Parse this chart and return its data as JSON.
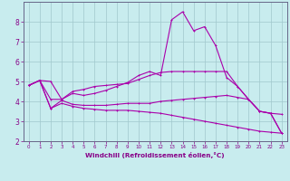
{
  "background_color": "#c8ecee",
  "line_color": "#aa00aa",
  "grid_color": "#a0c8cc",
  "xlabel": "Windchill (Refroidissement éolien,°C)",
  "xlabel_color": "#880088",
  "tick_color": "#880088",
  "spine_color": "#666688",
  "xlim": [
    -0.5,
    23.5
  ],
  "ylim": [
    2,
    9
  ],
  "yticks": [
    2,
    3,
    4,
    5,
    6,
    7,
    8
  ],
  "xticks": [
    0,
    1,
    2,
    3,
    4,
    5,
    6,
    7,
    8,
    9,
    10,
    11,
    12,
    13,
    14,
    15,
    16,
    17,
    18,
    19,
    20,
    21,
    22,
    23
  ],
  "line1_x": [
    0,
    1,
    2,
    3,
    4,
    5,
    6,
    7,
    8,
    9,
    10,
    11,
    12,
    13,
    14,
    15,
    16,
    17,
    18,
    19,
    20,
    21,
    22,
    23
  ],
  "line1_y": [
    4.8,
    5.05,
    5.0,
    4.1,
    4.5,
    4.6,
    4.75,
    4.8,
    4.85,
    4.9,
    5.1,
    5.3,
    5.45,
    5.5,
    5.5,
    5.5,
    5.5,
    5.5,
    5.5,
    4.75,
    4.1,
    3.5,
    3.4,
    3.35
  ],
  "line2_x": [
    0,
    1,
    2,
    3,
    4,
    5,
    6,
    7,
    8,
    9,
    10,
    11,
    12,
    13,
    14,
    15,
    16,
    17,
    18,
    19,
    20,
    21,
    22,
    23
  ],
  "line2_y": [
    4.8,
    5.05,
    4.1,
    4.1,
    4.4,
    4.3,
    4.4,
    4.55,
    4.75,
    4.95,
    5.3,
    5.5,
    5.3,
    8.1,
    8.5,
    7.55,
    7.75,
    6.8,
    5.2,
    4.75,
    4.1,
    3.5,
    3.4,
    2.4
  ],
  "line3_x": [
    0,
    1,
    2,
    3,
    4,
    5,
    6,
    7,
    8,
    9,
    10,
    11,
    12,
    13,
    14,
    15,
    16,
    17,
    18,
    19,
    20,
    21,
    22,
    23
  ],
  "line3_y": [
    4.8,
    5.05,
    3.65,
    4.05,
    3.85,
    3.8,
    3.8,
    3.8,
    3.85,
    3.9,
    3.9,
    3.9,
    4.0,
    4.05,
    4.1,
    4.15,
    4.2,
    4.25,
    4.3,
    4.2,
    4.1,
    3.5,
    3.4,
    2.4
  ],
  "line4_x": [
    0,
    1,
    2,
    3,
    4,
    5,
    6,
    7,
    8,
    9,
    10,
    11,
    12,
    13,
    14,
    15,
    16,
    17,
    18,
    19,
    20,
    21,
    22,
    23
  ],
  "line4_y": [
    4.8,
    5.05,
    3.65,
    3.9,
    3.75,
    3.65,
    3.6,
    3.55,
    3.55,
    3.55,
    3.5,
    3.45,
    3.4,
    3.3,
    3.2,
    3.1,
    3.0,
    2.9,
    2.8,
    2.7,
    2.6,
    2.5,
    2.45,
    2.4
  ]
}
